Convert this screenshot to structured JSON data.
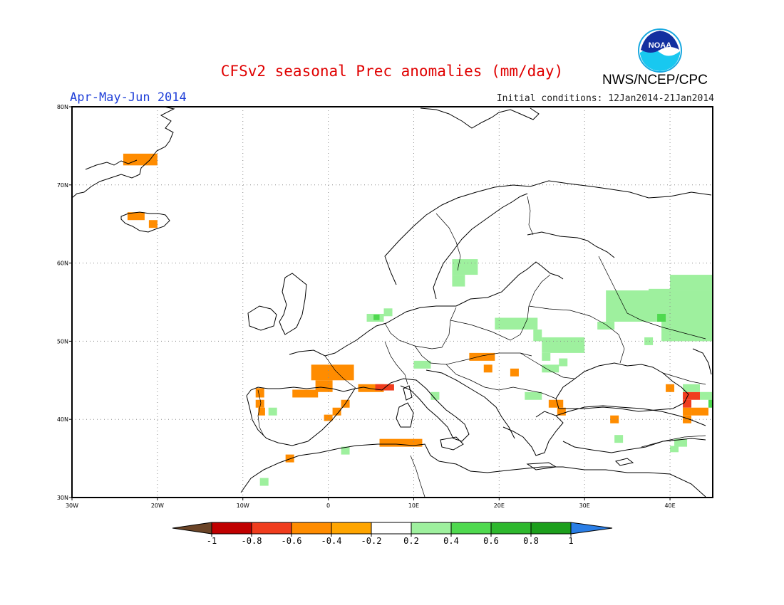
{
  "title": "CFSv2 seasonal Prec anomalies (mm/day)",
  "agency": "NWS/NCEP/CPC",
  "logo_text": "NOAA",
  "season": "Apr-May-Jun 2014",
  "initial_conditions": "Initial conditions: 12Jan2014-21Jan2014",
  "map": {
    "lon_range": [
      -30,
      45
    ],
    "lat_range": [
      30,
      80
    ],
    "lat_ticks": [
      {
        "value": 80,
        "label": "80N"
      },
      {
        "value": 70,
        "label": "70N"
      },
      {
        "value": 60,
        "label": "60N"
      },
      {
        "value": 50,
        "label": "50N"
      },
      {
        "value": 40,
        "label": "40N"
      },
      {
        "value": 30,
        "label": "30N"
      }
    ],
    "lon_ticks": [
      {
        "value": -30,
        "label": "30W"
      },
      {
        "value": -20,
        "label": "20W"
      },
      {
        "value": -10,
        "label": "10W"
      },
      {
        "value": 0,
        "label": "0"
      },
      {
        "value": 10,
        "label": "10E"
      },
      {
        "value": 20,
        "label": "20E"
      },
      {
        "value": 30,
        "label": "30E"
      },
      {
        "value": 40,
        "label": "40E"
      }
    ],
    "grid": true,
    "anomaly_cells": [
      {
        "lon": -24,
        "lat": 72.5,
        "w": 4,
        "h": 1.5,
        "cat": "n2"
      },
      {
        "lon": -23.5,
        "lat": 65.5,
        "w": 2,
        "h": 1,
        "cat": "n2"
      },
      {
        "lon": -21,
        "lat": 64.5,
        "w": 1,
        "h": 1,
        "cat": "n2"
      },
      {
        "lon": -2,
        "lat": 45,
        "w": 5,
        "h": 2,
        "cat": "n2"
      },
      {
        "lon": -1.5,
        "lat": 43.5,
        "w": 2,
        "h": 1.5,
        "cat": "n2"
      },
      {
        "lon": -4.2,
        "lat": 42.8,
        "w": 3,
        "h": 1,
        "cat": "n2"
      },
      {
        "lon": -8.5,
        "lat": 42.8,
        "w": 1,
        "h": 1.2,
        "cat": "n2"
      },
      {
        "lon": -8.5,
        "lat": 41.5,
        "w": 1,
        "h": 1,
        "cat": "n2"
      },
      {
        "lon": -8.2,
        "lat": 40.5,
        "w": 0.8,
        "h": 1,
        "cat": "n2"
      },
      {
        "lon": 3.5,
        "lat": 43.5,
        "w": 3,
        "h": 1,
        "cat": "n2"
      },
      {
        "lon": 5.5,
        "lat": 43.7,
        "w": 2.2,
        "h": 0.8,
        "cat": "n3"
      },
      {
        "lon": 1.5,
        "lat": 41.5,
        "w": 1,
        "h": 1,
        "cat": "n2"
      },
      {
        "lon": 0.5,
        "lat": 40.5,
        "w": 1,
        "h": 1,
        "cat": "n2"
      },
      {
        "lon": -0.5,
        "lat": 39.8,
        "w": 1,
        "h": 0.8,
        "cat": "n2"
      },
      {
        "lon": 6,
        "lat": 36.5,
        "w": 5,
        "h": 1,
        "cat": "n2"
      },
      {
        "lon": -5,
        "lat": 34.5,
        "w": 1,
        "h": 1,
        "cat": "n2"
      },
      {
        "lon": 16.5,
        "lat": 47.5,
        "w": 3,
        "h": 1,
        "cat": "n2"
      },
      {
        "lon": 18.2,
        "lat": 46,
        "w": 1,
        "h": 1,
        "cat": "n2"
      },
      {
        "lon": 21.3,
        "lat": 45.5,
        "w": 1,
        "h": 1,
        "cat": "n2"
      },
      {
        "lon": 25.8,
        "lat": 41.5,
        "w": 1.7,
        "h": 1,
        "cat": "n2"
      },
      {
        "lon": 26.8,
        "lat": 40.5,
        "w": 1,
        "h": 1,
        "cat": "n2"
      },
      {
        "lon": 33,
        "lat": 39.5,
        "w": 1,
        "h": 1,
        "cat": "n2"
      },
      {
        "lon": 39.5,
        "lat": 43.5,
        "w": 1,
        "h": 1,
        "cat": "n2"
      },
      {
        "lon": 41.5,
        "lat": 42.5,
        "w": 2,
        "h": 1,
        "cat": "n3"
      },
      {
        "lon": 41.5,
        "lat": 41.5,
        "w": 1,
        "h": 1,
        "cat": "n3"
      },
      {
        "lon": 42.5,
        "lat": 40.5,
        "w": 2,
        "h": 1,
        "cat": "n2"
      },
      {
        "lon": 41.5,
        "lat": 39.5,
        "w": 1,
        "h": 1,
        "cat": "n2"
      },
      {
        "lon": 41.5,
        "lat": 40.5,
        "w": 1,
        "h": 1,
        "cat": "n2"
      },
      {
        "lon": 14.5,
        "lat": 58.5,
        "w": 3,
        "h": 2,
        "cat": "p1"
      },
      {
        "lon": 14.5,
        "lat": 57,
        "w": 1.5,
        "h": 1.5,
        "cat": "p1"
      },
      {
        "lon": 19.5,
        "lat": 51.5,
        "w": 5,
        "h": 1.5,
        "cat": "p1"
      },
      {
        "lon": 24,
        "lat": 50,
        "w": 1,
        "h": 1.5,
        "cat": "p1"
      },
      {
        "lon": 25,
        "lat": 48.5,
        "w": 5,
        "h": 2,
        "cat": "p1"
      },
      {
        "lon": 25,
        "lat": 47.5,
        "w": 1,
        "h": 1,
        "cat": "p1"
      },
      {
        "lon": 31.5,
        "lat": 51.5,
        "w": 2,
        "h": 1,
        "cat": "p1"
      },
      {
        "lon": 32.5,
        "lat": 52.5,
        "w": 8,
        "h": 4,
        "cat": "p1"
      },
      {
        "lon": 37.5,
        "lat": 55.5,
        "w": 3,
        "h": 1.2,
        "cat": "p1"
      },
      {
        "lon": 39,
        "lat": 50,
        "w": 6,
        "h": 6.5,
        "cat": "p1"
      },
      {
        "lon": 40,
        "lat": 56.5,
        "w": 5,
        "h": 2,
        "cat": "p1"
      },
      {
        "lon": 38.5,
        "lat": 52.5,
        "w": 1,
        "h": 1,
        "cat": "p2"
      },
      {
        "lon": 37,
        "lat": 49.5,
        "w": 1,
        "h": 1,
        "cat": "p1"
      },
      {
        "lon": 25,
        "lat": 46,
        "w": 2,
        "h": 1,
        "cat": "p1"
      },
      {
        "lon": 27,
        "lat": 46.8,
        "w": 1,
        "h": 1,
        "cat": "p1"
      },
      {
        "lon": 23,
        "lat": 42.5,
        "w": 2,
        "h": 1,
        "cat": "p1"
      },
      {
        "lon": 10,
        "lat": 46.5,
        "w": 2,
        "h": 1,
        "cat": "p1"
      },
      {
        "lon": 12,
        "lat": 42.5,
        "w": 1,
        "h": 1,
        "cat": "p1"
      },
      {
        "lon": 4.5,
        "lat": 52.5,
        "w": 2,
        "h": 1,
        "cat": "p1"
      },
      {
        "lon": 6.5,
        "lat": 53.2,
        "w": 1,
        "h": 1,
        "cat": "p1"
      },
      {
        "lon": 5.3,
        "lat": 52.7,
        "w": 0.7,
        "h": 0.7,
        "cat": "p2"
      },
      {
        "lon": 41.5,
        "lat": 43.5,
        "w": 2,
        "h": 1,
        "cat": "p1"
      },
      {
        "lon": 43.5,
        "lat": 42.5,
        "w": 1.5,
        "h": 1,
        "cat": "p1"
      },
      {
        "lon": 44.5,
        "lat": 41.5,
        "w": 0.5,
        "h": 1,
        "cat": "p2"
      },
      {
        "lon": 40.5,
        "lat": 36.5,
        "w": 1.5,
        "h": 1,
        "cat": "p1"
      },
      {
        "lon": 40,
        "lat": 35.8,
        "w": 1,
        "h": 0.8,
        "cat": "p1"
      },
      {
        "lon": 33.5,
        "lat": 37,
        "w": 1,
        "h": 1,
        "cat": "p1"
      },
      {
        "lon": 1.5,
        "lat": 35.5,
        "w": 1,
        "h": 1,
        "cat": "p1"
      },
      {
        "lon": -8,
        "lat": 31.5,
        "w": 1,
        "h": 1,
        "cat": "p1"
      },
      {
        "lon": -7,
        "lat": 40.5,
        "w": 1,
        "h": 1,
        "cat": "p1"
      }
    ]
  },
  "colorbar": {
    "labels": [
      "-1",
      "-0.8",
      "-0.6",
      "-0.4",
      "-0.2",
      "0.2",
      "0.4",
      "0.6",
      "0.8",
      "1"
    ],
    "colors": {
      "below_min": "#6b4427",
      "n4": "#c00000",
      "n3": "#f03d1e",
      "n2": "#ff8c00",
      "n1": "#ffa500",
      "zero": "#ffffff",
      "p1": "#9ef09e",
      "p2": "#4fd94f",
      "p3": "#2eb82e",
      "p4": "#1c9f1c",
      "above_max": "#2a7ee6"
    },
    "bins": [
      "n4",
      "n3",
      "n2",
      "n1",
      "zero",
      "p1",
      "p2",
      "p3",
      "p4"
    ]
  },
  "coast_color": "#000000",
  "grid_color": "#8a8a8a"
}
